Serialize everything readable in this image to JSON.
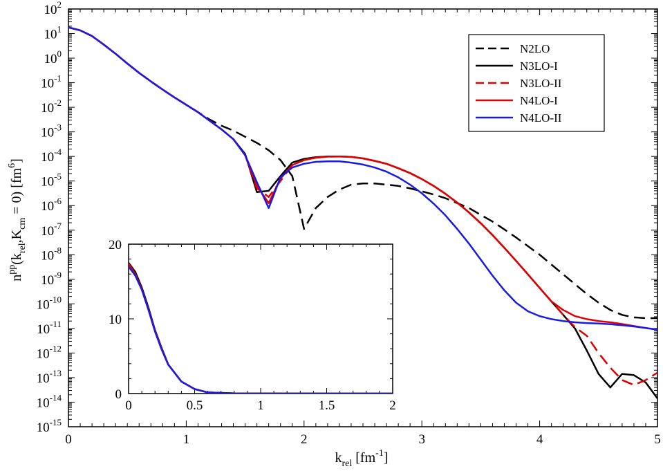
{
  "chart_data": [
    {
      "id": "main",
      "type": "line",
      "xscale": "linear",
      "yscale": "log",
      "xlim": [
        0,
        5
      ],
      "ylim_exp": [
        -15,
        2
      ],
      "xticks": [
        0,
        1,
        2,
        3,
        4,
        5
      ],
      "xlabel": "k",
      "xlabel_sub": "rel",
      "xlabel_unit": " [fm",
      "xlabel_unit_sup": "-1",
      "xlabel_unit_close": "]",
      "ylabel": {
        "n": "n",
        "n_sup": "pp",
        "open": "(k",
        "k_sub": "rel",
        "comma": ",K",
        "K_sub": "cm",
        "rest": " = 0) [fm",
        "unit_sup": "6",
        "close": "]"
      },
      "legend": {
        "position": "top-right",
        "entries": [
          {
            "label": "N2LO",
            "color": "#000000",
            "dash": "dashed"
          },
          {
            "label": "N3LO-I",
            "color": "#000000",
            "dash": "solid"
          },
          {
            "label": "N3LO-II",
            "color": "#e00000",
            "dash": "dashed"
          },
          {
            "label": "N4LO-I",
            "color": "#e00000",
            "dash": "solid"
          },
          {
            "label": "N4LO-II",
            "color": "#1a1ae6",
            "dash": "solid"
          }
        ]
      },
      "series": [
        {
          "name": "N2LO",
          "color": "#000000",
          "dash": "dashed",
          "x": [
            0,
            0.1,
            0.2,
            0.3,
            0.4,
            0.5,
            0.6,
            0.7,
            0.8,
            0.9,
            1.0,
            1.1,
            1.2,
            1.3,
            1.4,
            1.5,
            1.6,
            1.7,
            1.8,
            1.9,
            2.0,
            2.1,
            2.2,
            2.3,
            2.4,
            2.5,
            2.6,
            2.7,
            2.8,
            2.9,
            3.0,
            3.1,
            3.2,
            3.3,
            3.4,
            3.5,
            3.6,
            3.7,
            3.8,
            3.9,
            4.0,
            4.1,
            4.2,
            4.3,
            4.4,
            4.5,
            4.6,
            4.7,
            4.8,
            4.9,
            5.0
          ],
          "logy": [
            1.25,
            1.13,
            0.9,
            0.55,
            0.18,
            -0.22,
            -0.6,
            -0.95,
            -1.28,
            -1.6,
            -1.9,
            -2.2,
            -2.5,
            -2.75,
            -2.95,
            -3.2,
            -3.45,
            -3.75,
            -4.15,
            -4.8,
            -6.95,
            -6.1,
            -5.65,
            -5.35,
            -5.15,
            -5.1,
            -5.1,
            -5.15,
            -5.2,
            -5.3,
            -5.42,
            -5.55,
            -5.7,
            -5.9,
            -6.1,
            -6.38,
            -6.65,
            -6.97,
            -7.3,
            -7.65,
            -8.0,
            -8.4,
            -8.8,
            -9.2,
            -9.6,
            -9.95,
            -10.25,
            -10.45,
            -10.55,
            -10.58,
            -10.58
          ]
        },
        {
          "name": "N3LO-I",
          "color": "#000000",
          "dash": "solid",
          "x": [
            0,
            0.1,
            0.2,
            0.3,
            0.4,
            0.5,
            0.6,
            0.7,
            0.8,
            0.9,
            1.0,
            1.1,
            1.2,
            1.3,
            1.4,
            1.5,
            1.6,
            1.7,
            1.8,
            1.9,
            2.0,
            2.1,
            2.2,
            2.3,
            2.4,
            2.5,
            2.6,
            2.7,
            2.8,
            2.9,
            3.0,
            3.1,
            3.2,
            3.3,
            3.4,
            3.5,
            3.6,
            3.7,
            3.8,
            3.9,
            4.0,
            4.1,
            4.2,
            4.3,
            4.4,
            4.5,
            4.6,
            4.7,
            4.8,
            4.9,
            5.0
          ],
          "logy": [
            1.25,
            1.13,
            0.9,
            0.55,
            0.18,
            -0.22,
            -0.6,
            -0.95,
            -1.28,
            -1.6,
            -1.9,
            -2.2,
            -2.55,
            -2.9,
            -3.3,
            -3.9,
            -5.45,
            -5.4,
            -4.8,
            -4.25,
            -4.1,
            -4.03,
            -4.0,
            -4.0,
            -4.02,
            -4.08,
            -4.18,
            -4.3,
            -4.48,
            -4.68,
            -4.92,
            -5.2,
            -5.52,
            -5.88,
            -6.28,
            -6.72,
            -7.2,
            -7.72,
            -8.25,
            -8.8,
            -9.35,
            -9.9,
            -10.45,
            -11.0,
            -11.9,
            -12.85,
            -13.4,
            -12.85,
            -12.9,
            -13.2,
            -13.85
          ]
        },
        {
          "name": "N3LO-II",
          "color": "#e00000",
          "dash": "dashed",
          "x": [
            0,
            0.1,
            0.2,
            0.3,
            0.4,
            0.5,
            0.6,
            0.7,
            0.8,
            0.9,
            1.0,
            1.1,
            1.2,
            1.3,
            1.4,
            1.5,
            1.6,
            1.7,
            1.8,
            1.9,
            2.0,
            2.1,
            2.2,
            2.3,
            2.4,
            2.5,
            2.6,
            2.7,
            2.8,
            2.9,
            3.0,
            3.1,
            3.2,
            3.3,
            3.4,
            3.5,
            3.6,
            3.7,
            3.8,
            3.9,
            4.0,
            4.1,
            4.2,
            4.3,
            4.4,
            4.5,
            4.6,
            4.7,
            4.8,
            4.9,
            5.0
          ],
          "logy": [
            1.25,
            1.13,
            0.9,
            0.55,
            0.18,
            -0.22,
            -0.6,
            -0.95,
            -1.28,
            -1.6,
            -1.9,
            -2.2,
            -2.55,
            -2.9,
            -3.3,
            -3.95,
            -5.3,
            -5.65,
            -5.0,
            -4.35,
            -4.15,
            -4.05,
            -4.01,
            -4.0,
            -4.02,
            -4.08,
            -4.18,
            -4.3,
            -4.48,
            -4.68,
            -4.92,
            -5.2,
            -5.52,
            -5.88,
            -6.28,
            -6.72,
            -7.2,
            -7.72,
            -8.25,
            -8.8,
            -9.35,
            -9.9,
            -10.45,
            -10.95,
            -11.3,
            -12.0,
            -12.6,
            -13.1,
            -13.3,
            -13.1,
            -12.8
          ]
        },
        {
          "name": "N4LO-I",
          "color": "#e00000",
          "dash": "solid",
          "x": [
            0,
            0.1,
            0.2,
            0.3,
            0.4,
            0.5,
            0.6,
            0.7,
            0.8,
            0.9,
            1.0,
            1.1,
            1.2,
            1.3,
            1.4,
            1.5,
            1.6,
            1.7,
            1.8,
            1.9,
            2.0,
            2.1,
            2.2,
            2.3,
            2.4,
            2.5,
            2.6,
            2.7,
            2.8,
            2.9,
            3.0,
            3.1,
            3.2,
            3.3,
            3.4,
            3.5,
            3.6,
            3.7,
            3.8,
            3.9,
            4.0,
            4.1,
            4.2,
            4.3,
            4.4,
            4.5,
            4.6,
            4.7,
            4.8,
            4.9,
            5.0
          ],
          "logy": [
            1.25,
            1.13,
            0.9,
            0.55,
            0.18,
            -0.22,
            -0.6,
            -0.95,
            -1.28,
            -1.6,
            -1.9,
            -2.2,
            -2.55,
            -2.9,
            -3.3,
            -3.95,
            -5.2,
            -5.9,
            -4.9,
            -4.35,
            -4.15,
            -4.05,
            -4.01,
            -4.0,
            -4.02,
            -4.08,
            -4.18,
            -4.3,
            -4.48,
            -4.68,
            -4.92,
            -5.2,
            -5.52,
            -5.88,
            -6.28,
            -6.72,
            -7.2,
            -7.72,
            -8.25,
            -8.8,
            -9.35,
            -9.9,
            -10.25,
            -10.5,
            -10.62,
            -10.7,
            -10.75,
            -10.82,
            -10.9,
            -10.98,
            -11.05
          ]
        },
        {
          "name": "N4LO-II",
          "color": "#1a1ae6",
          "dash": "solid",
          "x": [
            0,
            0.1,
            0.2,
            0.3,
            0.4,
            0.5,
            0.6,
            0.7,
            0.8,
            0.9,
            1.0,
            1.1,
            1.2,
            1.3,
            1.4,
            1.5,
            1.6,
            1.7,
            1.8,
            1.9,
            2.0,
            2.1,
            2.2,
            2.3,
            2.4,
            2.5,
            2.6,
            2.7,
            2.8,
            2.9,
            3.0,
            3.1,
            3.2,
            3.3,
            3.4,
            3.5,
            3.6,
            3.7,
            3.8,
            3.9,
            4.0,
            4.1,
            4.2,
            4.3,
            4.4,
            4.5,
            4.6,
            4.7,
            4.8,
            4.9,
            5.0
          ],
          "logy": [
            1.25,
            1.13,
            0.9,
            0.55,
            0.18,
            -0.22,
            -0.6,
            -0.95,
            -1.28,
            -1.6,
            -1.9,
            -2.2,
            -2.55,
            -2.9,
            -3.3,
            -3.95,
            -5.05,
            -6.1,
            -4.85,
            -4.45,
            -4.3,
            -4.22,
            -4.2,
            -4.2,
            -4.25,
            -4.33,
            -4.45,
            -4.62,
            -4.85,
            -5.15,
            -5.5,
            -5.92,
            -6.4,
            -6.95,
            -7.55,
            -8.2,
            -8.85,
            -9.45,
            -9.95,
            -10.3,
            -10.5,
            -10.62,
            -10.7,
            -10.75,
            -10.78,
            -10.8,
            -10.83,
            -10.87,
            -10.92,
            -10.98,
            -11.05
          ]
        }
      ]
    },
    {
      "id": "inset",
      "type": "line",
      "xscale": "linear",
      "yscale": "linear",
      "xlim": [
        0,
        2
      ],
      "ylim": [
        0,
        20
      ],
      "xticks": [
        0,
        0.5,
        1,
        1.5,
        2
      ],
      "xtick_labels": [
        "0",
        "0.5",
        "1",
        "1.5",
        "2"
      ],
      "yticks": [
        0,
        10,
        20
      ],
      "ytick_labels": [
        "0",
        "10",
        "20"
      ],
      "series": [
        {
          "name": "N2LO",
          "color": "#000000",
          "dash": "solid",
          "x": [
            0,
            0.05,
            0.1,
            0.15,
            0.2,
            0.25,
            0.3,
            0.4,
            0.5,
            0.6,
            0.8,
            1.0,
            1.5,
            2.0
          ],
          "y": [
            17.5,
            16.3,
            14.2,
            11.5,
            8.5,
            6.1,
            3.9,
            1.6,
            0.6,
            0.15,
            0.03,
            0.01,
            0,
            0
          ]
        },
        {
          "name": "N4LO-I",
          "color": "#e00000",
          "dash": "solid",
          "x": [
            0,
            0.05,
            0.1,
            0.15,
            0.2,
            0.25,
            0.3,
            0.4,
            0.5,
            0.6,
            0.8,
            1.0,
            1.5,
            2.0
          ],
          "y": [
            17.4,
            16.0,
            14.0,
            11.3,
            8.4,
            6.0,
            3.9,
            1.6,
            0.6,
            0.15,
            0.03,
            0.01,
            0,
            0
          ]
        },
        {
          "name": "N4LO-II",
          "color": "#1a1ae6",
          "dash": "solid",
          "x": [
            0,
            0.05,
            0.1,
            0.15,
            0.2,
            0.25,
            0.3,
            0.4,
            0.5,
            0.6,
            0.8,
            1.0,
            1.5,
            2.0
          ],
          "y": [
            17.0,
            15.8,
            13.9,
            11.2,
            8.3,
            5.9,
            3.85,
            1.6,
            0.6,
            0.15,
            0.03,
            0.01,
            0,
            0
          ]
        }
      ]
    }
  ]
}
